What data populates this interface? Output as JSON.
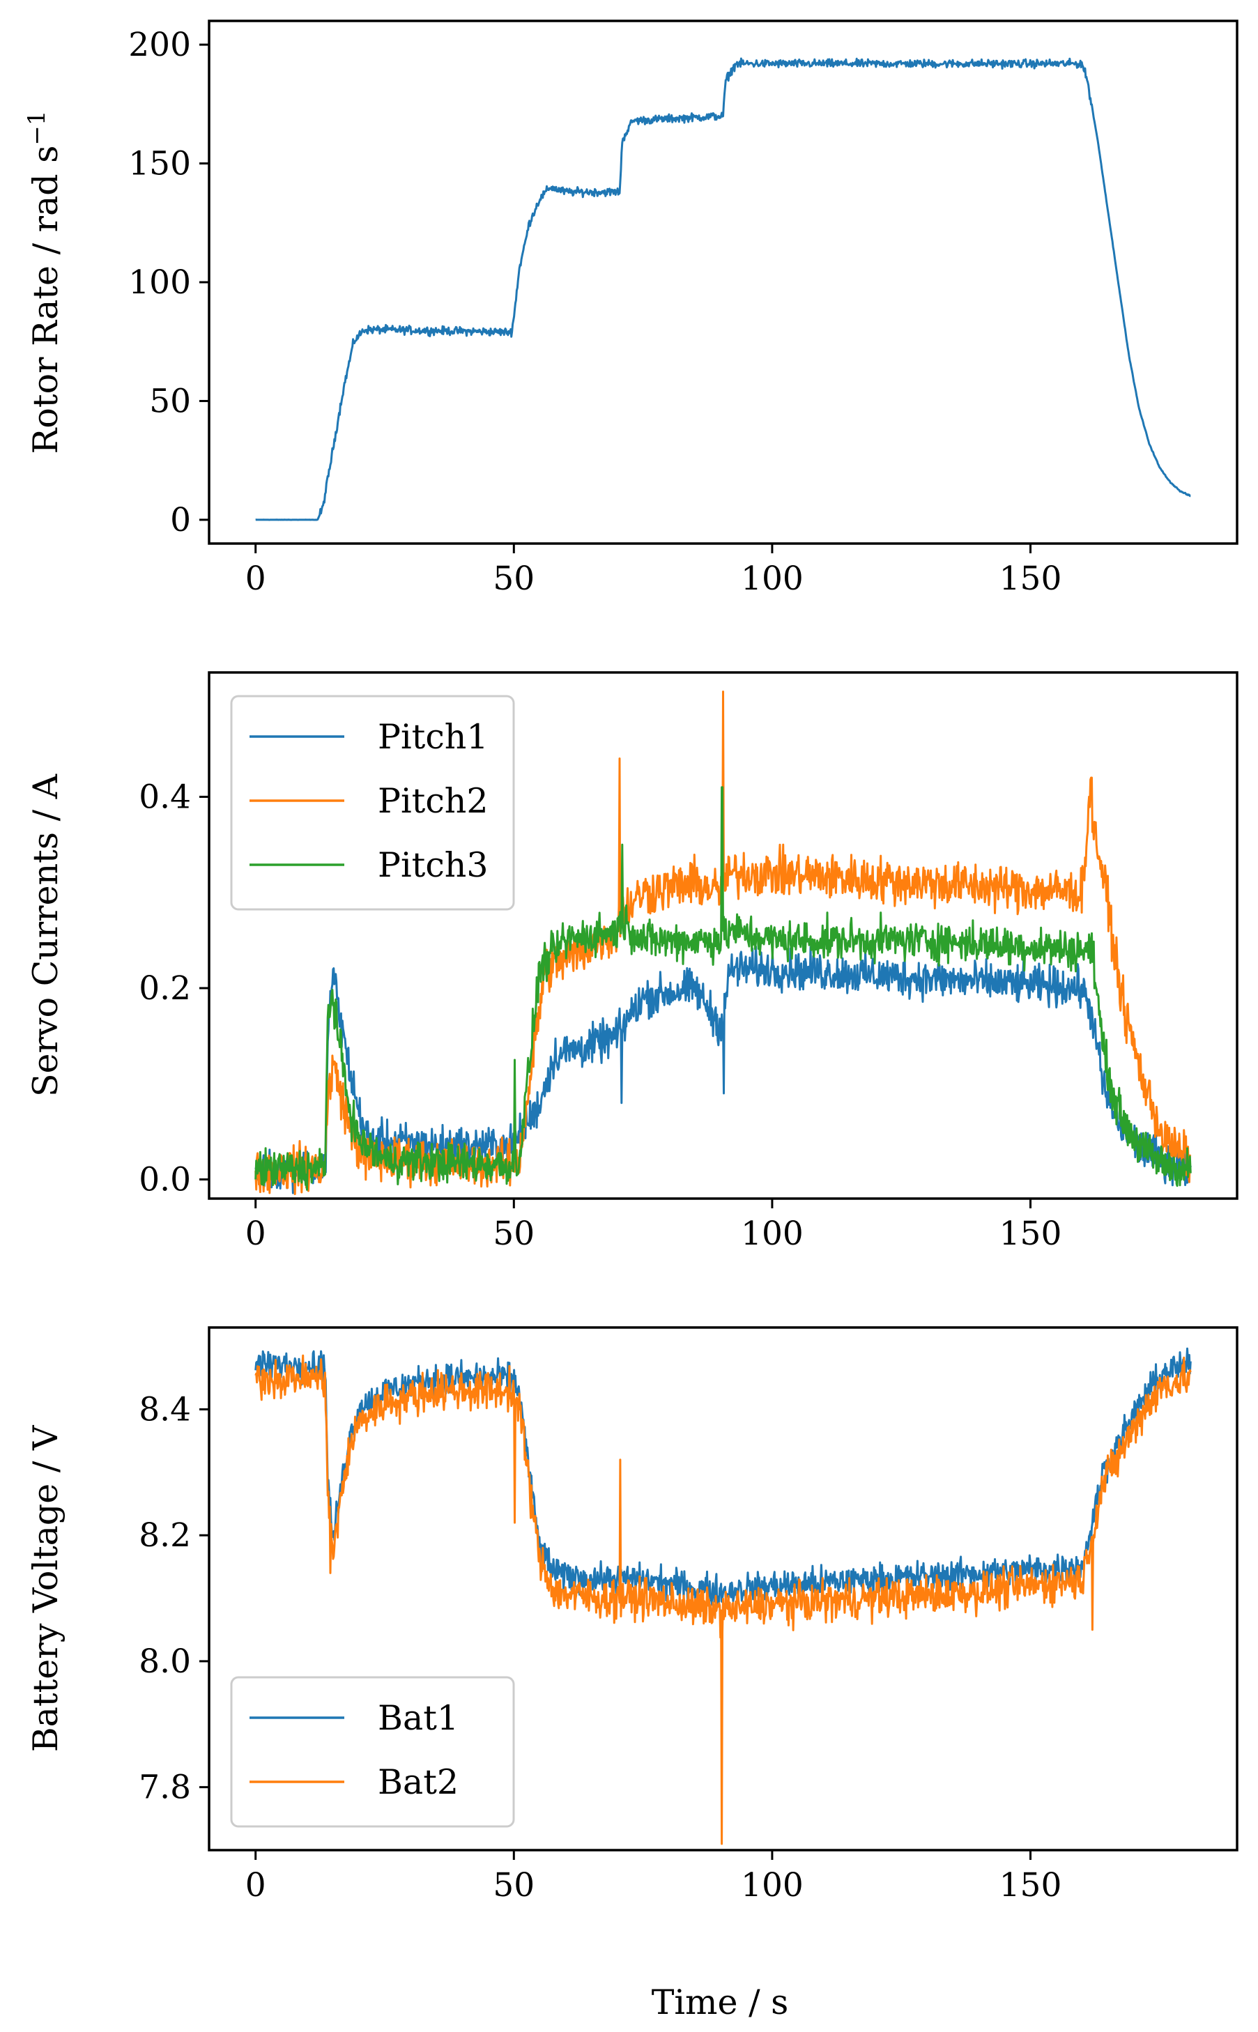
{
  "figure": {
    "xlabel": "Time / s",
    "colors": {
      "c0": "#1f77b4",
      "c1": "#ff7f0e",
      "c2": "#2ca02c"
    }
  },
  "chart_data": [
    {
      "type": "line",
      "id": "rotor",
      "title": "",
      "xlabel": "",
      "ylabel": "Rotor Rate / rad s−1",
      "ylabel_parts": {
        "main": "Rotor Rate / rad s",
        "sup": "−1"
      },
      "xlim": [
        -9,
        190
      ],
      "ylim": [
        -10,
        210
      ],
      "xticks": [
        0,
        50,
        100,
        150
      ],
      "xtick_labels": [
        "0",
        "50",
        "100",
        "150"
      ],
      "yticks": [
        0,
        50,
        100,
        150,
        200
      ],
      "ytick_labels": [
        "0",
        "50",
        "100",
        "150",
        "200"
      ],
      "legend": null,
      "series": [
        {
          "name": "Rotor Rate",
          "color": "#1f77b4",
          "noise": 2.5,
          "x": [
            0,
            12,
            13,
            15,
            17,
            19,
            21,
            25,
            49.5,
            50,
            51,
            53,
            55,
            57,
            60,
            70.5,
            71,
            73,
            90.5,
            91,
            93,
            160,
            161,
            163,
            165,
            167,
            169,
            171,
            173,
            175,
            177,
            179,
            181
          ],
          "y": [
            0,
            0,
            5,
            30,
            55,
            75,
            80,
            80,
            79,
            85,
            105,
            125,
            135,
            140,
            138,
            138,
            160,
            168,
            170,
            185,
            192,
            192,
            185,
            160,
            130,
            100,
            70,
            47,
            32,
            22,
            16,
            12,
            10
          ]
        }
      ]
    },
    {
      "type": "line",
      "id": "servo",
      "title": "",
      "xlabel": "",
      "ylabel": "Servo Currents / A",
      "xlim": [
        -9,
        190
      ],
      "ylim": [
        -0.02,
        0.53
      ],
      "xticks": [
        0,
        50,
        100,
        150
      ],
      "xtick_labels": [
        "0",
        "50",
        "100",
        "150"
      ],
      "yticks": [
        0.0,
        0.2,
        0.4
      ],
      "ytick_labels": [
        "0.0",
        "0.2",
        "0.4"
      ],
      "legend": "upper left",
      "series": [
        {
          "name": "Pitch1",
          "color": "#1f77b4",
          "noise": 0.03,
          "x": [
            0,
            13.5,
            14,
            15,
            16,
            18,
            20,
            22,
            25,
            35,
            49.5,
            51,
            55,
            58,
            65,
            70,
            71,
            75,
            85,
            90,
            92,
            100,
            130,
            160,
            162,
            164,
            166,
            168,
            172,
            176,
            181
          ],
          "y": [
            0.01,
            0.012,
            0.15,
            0.22,
            0.18,
            0.12,
            0.07,
            0.04,
            0.04,
            0.035,
            0.035,
            0.045,
            0.08,
            0.13,
            0.14,
            0.15,
            0.16,
            0.19,
            0.2,
            0.16,
            0.22,
            0.22,
            0.21,
            0.2,
            0.17,
            0.1,
            0.07,
            0.05,
            0.03,
            0.02,
            0.01
          ]
        },
        {
          "name": "Pitch2",
          "color": "#ff7f0e",
          "noise": 0.035,
          "x": [
            0,
            13.5,
            14,
            15,
            17,
            19,
            22,
            30,
            49.5,
            51,
            53,
            56,
            60,
            70,
            71,
            75,
            85,
            90,
            92,
            100,
            130,
            160,
            161.5,
            162.5,
            164,
            166,
            168,
            172,
            176,
            181
          ],
          "y": [
            0.01,
            0.012,
            0.09,
            0.12,
            0.08,
            0.04,
            0.02,
            0.02,
            0.015,
            0.02,
            0.1,
            0.22,
            0.23,
            0.26,
            0.28,
            0.3,
            0.31,
            0.3,
            0.32,
            0.32,
            0.31,
            0.3,
            0.4,
            0.36,
            0.32,
            0.25,
            0.18,
            0.1,
            0.04,
            0.02
          ]
        },
        {
          "name": "Pitch3",
          "color": "#2ca02c",
          "noise": 0.03,
          "x": [
            0,
            13.5,
            14,
            15,
            16,
            18,
            20,
            25,
            49.5,
            51,
            53,
            55,
            60,
            70,
            71,
            75,
            90,
            92,
            100,
            130,
            160,
            162,
            164,
            166,
            168,
            172,
            176,
            181
          ],
          "y": [
            0.01,
            0.012,
            0.18,
            0.19,
            0.15,
            0.08,
            0.04,
            0.02,
            0.015,
            0.02,
            0.12,
            0.22,
            0.25,
            0.26,
            0.27,
            0.25,
            0.25,
            0.26,
            0.25,
            0.25,
            0.24,
            0.24,
            0.14,
            0.09,
            0.06,
            0.03,
            0.015,
            0.01
          ]
        }
      ],
      "spikes": [
        {
          "series": "Pitch2",
          "x": 70.5,
          "y": 0.44
        },
        {
          "series": "Pitch1",
          "x": 70.8,
          "y": 0.08
        },
        {
          "series": "Pitch3",
          "x": 71,
          "y": 0.35
        },
        {
          "series": "Pitch2",
          "x": 90.5,
          "y": 0.51
        },
        {
          "series": "Pitch3",
          "x": 90.3,
          "y": 0.41
        },
        {
          "series": "Pitch1",
          "x": 90.6,
          "y": 0.09
        },
        {
          "series": "Pitch3",
          "x": 50.2,
          "y": 0.125
        },
        {
          "series": "Pitch2",
          "x": 161.8,
          "y": 0.42
        }
      ]
    },
    {
      "type": "line",
      "id": "battery",
      "title": "",
      "xlabel": "Time / s",
      "ylabel": "Battery Voltage / V",
      "xlim": [
        -9,
        190
      ],
      "ylim": [
        7.7,
        8.53
      ],
      "xticks": [
        0,
        50,
        100,
        150
      ],
      "xtick_labels": [
        "0",
        "50",
        "100",
        "150"
      ],
      "yticks": [
        7.8,
        8.0,
        8.2,
        8.4
      ],
      "ytick_labels": [
        "7.8",
        "8.0",
        "8.2",
        "8.4"
      ],
      "legend": "lower left",
      "series": [
        {
          "name": "Bat1",
          "color": "#1f77b4",
          "noise": 0.035,
          "x": [
            0,
            13.5,
            14,
            15,
            16,
            18,
            20,
            25,
            35,
            49.5,
            51,
            53,
            55,
            58,
            65,
            75,
            90,
            100,
            120,
            140,
            160,
            162.5,
            164,
            168,
            172,
            176,
            181
          ],
          "y": [
            8.47,
            8.47,
            8.28,
            8.19,
            8.25,
            8.35,
            8.4,
            8.43,
            8.45,
            8.45,
            8.43,
            8.3,
            8.18,
            8.14,
            8.13,
            8.13,
            8.11,
            8.12,
            8.13,
            8.14,
            8.15,
            8.24,
            8.3,
            8.36,
            8.42,
            8.46,
            8.47
          ]
        },
        {
          "name": "Bat2",
          "color": "#ff7f0e",
          "noise": 0.045,
          "x": [
            0,
            13.5,
            14,
            15,
            16,
            18,
            20,
            25,
            35,
            49.5,
            51,
            53,
            55,
            58,
            65,
            75,
            90,
            100,
            120,
            140,
            160,
            162.5,
            164,
            168,
            172,
            176,
            181
          ],
          "y": [
            8.45,
            8.45,
            8.26,
            8.17,
            8.23,
            8.33,
            8.38,
            8.41,
            8.43,
            8.43,
            8.41,
            8.28,
            8.16,
            8.11,
            8.1,
            8.1,
            8.08,
            8.09,
            8.1,
            8.11,
            8.13,
            8.22,
            8.28,
            8.34,
            8.4,
            8.44,
            8.45
          ]
        }
      ],
      "spikes": [
        {
          "series": "Bat2",
          "x": 14.5,
          "y": 8.14
        },
        {
          "series": "Bat2",
          "x": 50.2,
          "y": 8.22
        },
        {
          "series": "Bat2",
          "x": 70.6,
          "y": 8.32
        },
        {
          "series": "Bat2",
          "x": 90.2,
          "y": 7.71
        },
        {
          "series": "Bat2",
          "x": 162,
          "y": 8.05
        }
      ]
    }
  ]
}
